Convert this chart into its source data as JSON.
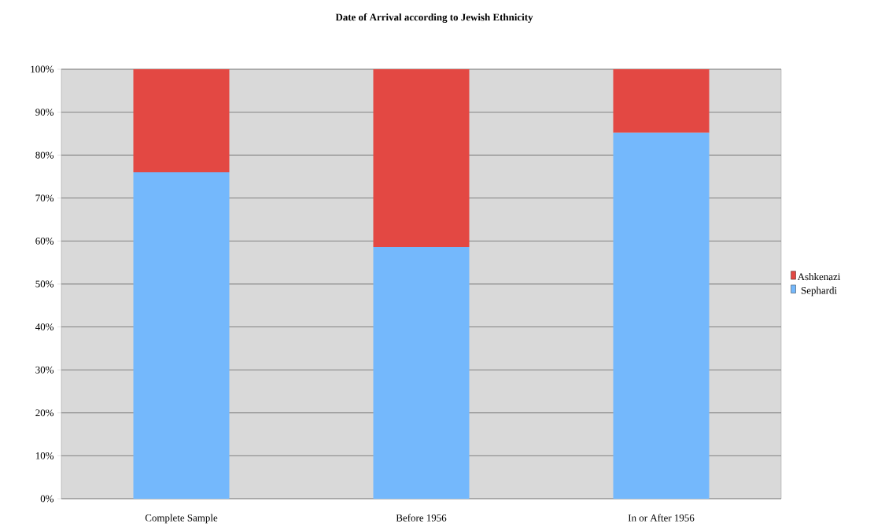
{
  "chart_data": {
    "type": "bar",
    "stacked": true,
    "title": "**Date of Arrival according to Jewish Ethnicity**",
    "categories": [
      "Complete Sample",
      "Before 1956",
      "In or After 1956"
    ],
    "series": [
      {
        "name": "Sephardi",
        "color": "#74b8fc",
        "values": [
          76,
          58.6,
          85.2
        ]
      },
      {
        "name": "Ashkenazi",
        "color": "#e34843",
        "values": [
          24,
          41.4,
          14.8
        ]
      }
    ],
    "ylim": [
      0,
      100
    ],
    "yticks": [
      {
        "value": 0,
        "label": "0%"
      },
      {
        "value": 10,
        "label": "10%"
      },
      {
        "value": 20,
        "label": "20%"
      },
      {
        "value": 30,
        "label": "30%"
      },
      {
        "value": 40,
        "label": "40%"
      },
      {
        "value": 50,
        "label": "50%"
      },
      {
        "value": 60,
        "label": "60%"
      },
      {
        "value": 70,
        "label": "70%"
      },
      {
        "value": 80,
        "label": "80%"
      },
      {
        "value": 90,
        "label": "90%"
      },
      {
        "value": 100,
        "label": "100%"
      }
    ],
    "grid": "y",
    "legend": "right"
  }
}
